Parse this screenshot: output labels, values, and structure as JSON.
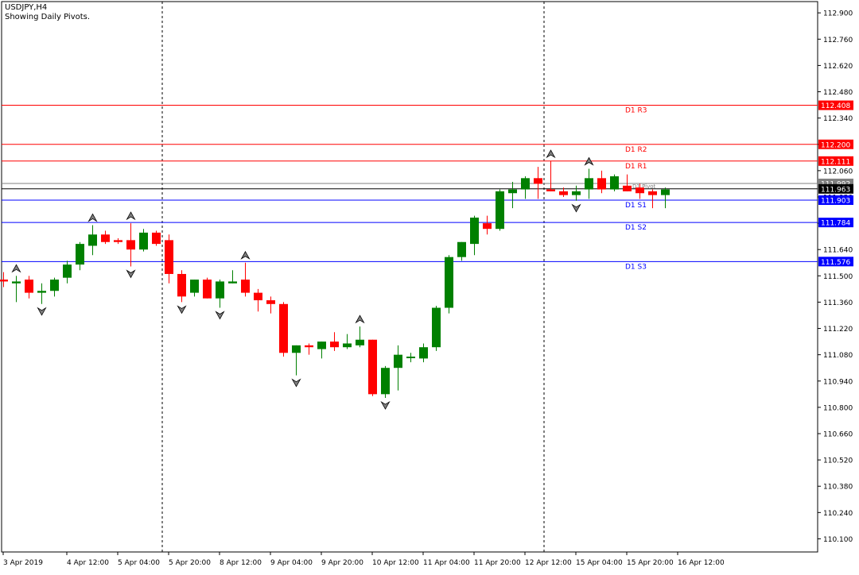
{
  "header": {
    "symbol": "USDJPY,H4",
    "subtitle": "Showing Daily Pivots."
  },
  "colors": {
    "bull": "#008000",
    "bear": "#ff0000",
    "resistance": "#ff0000",
    "support": "#0000ff",
    "pivot": "#808080",
    "price_label_bg": "#000000",
    "pivot_label_bg": "#808080"
  },
  "chart_data": {
    "type": "candlestick",
    "ylim": [
      110.03,
      112.96
    ],
    "y_ticks": [
      "112.900",
      "112.760",
      "112.620",
      "112.480",
      "112.340",
      "112.200",
      "112.060",
      "111.920",
      "111.780",
      "111.640",
      "111.500",
      "111.360",
      "111.220",
      "111.080",
      "110.940",
      "110.800",
      "110.660",
      "110.520",
      "110.380",
      "110.240",
      "110.100"
    ],
    "x_ticks": [
      {
        "label": "3 Apr 2019",
        "index": 0
      },
      {
        "label": "4 Apr 12:00",
        "index": 5
      },
      {
        "label": "5 Apr 04:00",
        "index": 9
      },
      {
        "label": "5 Apr 20:00",
        "index": 13
      },
      {
        "label": "8 Apr 12:00",
        "index": 17
      },
      {
        "label": "9 Apr 04:00",
        "index": 21
      },
      {
        "label": "9 Apr 20:00",
        "index": 25
      },
      {
        "label": "10 Apr 12:00",
        "index": 29
      },
      {
        "label": "11 Apr 04:00",
        "index": 33
      },
      {
        "label": "11 Apr 20:00",
        "index": 37
      },
      {
        "label": "12 Apr 12:00",
        "index": 41
      },
      {
        "label": "15 Apr 04:00",
        "index": 45
      },
      {
        "label": "15 Apr 20:00",
        "index": 49
      },
      {
        "label": "16 Apr 12:00",
        "index": 53
      }
    ],
    "day_separators": [
      13,
      43
    ],
    "candles": [
      {
        "o": 111.48,
        "h": 111.52,
        "l": 111.44,
        "c": 111.47
      },
      {
        "o": 111.46,
        "h": 111.5,
        "l": 111.36,
        "c": 111.47
      },
      {
        "o": 111.48,
        "h": 111.5,
        "l": 111.38,
        "c": 111.41
      },
      {
        "o": 111.41,
        "h": 111.46,
        "l": 111.35,
        "c": 111.42
      },
      {
        "o": 111.42,
        "h": 111.49,
        "l": 111.39,
        "c": 111.48
      },
      {
        "o": 111.49,
        "h": 111.58,
        "l": 111.46,
        "c": 111.56
      },
      {
        "o": 111.56,
        "h": 111.68,
        "l": 111.53,
        "c": 111.67
      },
      {
        "o": 111.66,
        "h": 111.77,
        "l": 111.61,
        "c": 111.72
      },
      {
        "o": 111.72,
        "h": 111.74,
        "l": 111.67,
        "c": 111.68
      },
      {
        "o": 111.69,
        "h": 111.7,
        "l": 111.67,
        "c": 111.68
      },
      {
        "o": 111.69,
        "h": 111.78,
        "l": 111.55,
        "c": 111.64
      },
      {
        "o": 111.64,
        "h": 111.75,
        "l": 111.63,
        "c": 111.73
      },
      {
        "o": 111.73,
        "h": 111.74,
        "l": 111.66,
        "c": 111.67
      },
      {
        "o": 111.69,
        "h": 111.72,
        "l": 111.46,
        "c": 111.51
      },
      {
        "o": 111.51,
        "h": 111.53,
        "l": 111.36,
        "c": 111.39
      },
      {
        "o": 111.41,
        "h": 111.48,
        "l": 111.39,
        "c": 111.48
      },
      {
        "o": 111.48,
        "h": 111.49,
        "l": 111.38,
        "c": 111.38
      },
      {
        "o": 111.38,
        "h": 111.48,
        "l": 111.33,
        "c": 111.47
      },
      {
        "o": 111.46,
        "h": 111.53,
        "l": 111.46,
        "c": 111.47
      },
      {
        "o": 111.48,
        "h": 111.57,
        "l": 111.39,
        "c": 111.41
      },
      {
        "o": 111.41,
        "h": 111.43,
        "l": 111.31,
        "c": 111.37
      },
      {
        "o": 111.37,
        "h": 111.39,
        "l": 111.3,
        "c": 111.35
      },
      {
        "o": 111.35,
        "h": 111.36,
        "l": 111.07,
        "c": 111.09
      },
      {
        "o": 111.09,
        "h": 111.13,
        "l": 110.97,
        "c": 111.13
      },
      {
        "o": 111.13,
        "h": 111.14,
        "l": 111.08,
        "c": 111.12
      },
      {
        "o": 111.11,
        "h": 111.15,
        "l": 111.06,
        "c": 111.15
      },
      {
        "o": 111.15,
        "h": 111.2,
        "l": 111.1,
        "c": 111.12
      },
      {
        "o": 111.12,
        "h": 111.19,
        "l": 111.11,
        "c": 111.14
      },
      {
        "o": 111.13,
        "h": 111.23,
        "l": 111.12,
        "c": 111.16
      },
      {
        "o": 111.16,
        "h": 111.16,
        "l": 110.86,
        "c": 110.87
      },
      {
        "o": 110.87,
        "h": 111.02,
        "l": 110.85,
        "c": 111.01
      },
      {
        "o": 111.01,
        "h": 111.13,
        "l": 110.89,
        "c": 111.08
      },
      {
        "o": 111.07,
        "h": 111.09,
        "l": 111.04,
        "c": 111.07
      },
      {
        "o": 111.06,
        "h": 111.14,
        "l": 111.04,
        "c": 111.12
      },
      {
        "o": 111.12,
        "h": 111.34,
        "l": 111.1,
        "c": 111.33
      },
      {
        "o": 111.33,
        "h": 111.61,
        "l": 111.3,
        "c": 111.6
      },
      {
        "o": 111.6,
        "h": 111.68,
        "l": 111.58,
        "c": 111.68
      },
      {
        "o": 111.67,
        "h": 111.82,
        "l": 111.61,
        "c": 111.81
      },
      {
        "o": 111.78,
        "h": 111.82,
        "l": 111.72,
        "c": 111.75
      },
      {
        "o": 111.75,
        "h": 111.96,
        "l": 111.74,
        "c": 111.95
      },
      {
        "o": 111.94,
        "h": 112.0,
        "l": 111.86,
        "c": 111.96
      },
      {
        "o": 111.96,
        "h": 112.03,
        "l": 111.91,
        "c": 112.02
      },
      {
        "o": 112.02,
        "h": 112.08,
        "l": 111.91,
        "c": 111.99
      },
      {
        "o": 111.96,
        "h": 112.11,
        "l": 111.95,
        "c": 111.95
      },
      {
        "o": 111.95,
        "h": 111.97,
        "l": 111.92,
        "c": 111.93
      },
      {
        "o": 111.93,
        "h": 111.98,
        "l": 111.9,
        "c": 111.95
      },
      {
        "o": 111.96,
        "h": 112.07,
        "l": 111.91,
        "c": 112.02
      },
      {
        "o": 112.02,
        "h": 112.06,
        "l": 111.94,
        "c": 111.96
      },
      {
        "o": 111.96,
        "h": 112.04,
        "l": 111.95,
        "c": 112.03
      },
      {
        "o": 111.98,
        "h": 112.04,
        "l": 111.95,
        "c": 111.95
      },
      {
        "o": 111.97,
        "h": 111.99,
        "l": 111.91,
        "c": 111.94
      },
      {
        "o": 111.95,
        "h": 111.96,
        "l": 111.86,
        "c": 111.93
      },
      {
        "o": 111.93,
        "h": 111.97,
        "l": 111.86,
        "c": 111.96
      }
    ],
    "fractals_up": [
      1,
      7,
      10,
      19,
      28,
      43,
      46
    ],
    "fractals_down": [
      3,
      10,
      14,
      17,
      23,
      30,
      45
    ],
    "pivot_lines": [
      {
        "name": "D1  R3",
        "value": 112.408,
        "label": "112.408",
        "kind": "resistance"
      },
      {
        "name": "D1  R2",
        "value": 112.2,
        "label": "112.200",
        "kind": "resistance"
      },
      {
        "name": "D1  R1",
        "value": 112.111,
        "label": "112.111",
        "kind": "resistance"
      },
      {
        "name": "D1  Pivot",
        "value": 111.992,
        "label": "111.992",
        "kind": "pivot"
      },
      {
        "name": "D1  S1",
        "value": 111.903,
        "label": "111.903",
        "kind": "support"
      },
      {
        "name": "D1  S2",
        "value": 111.784,
        "label": "111.784",
        "kind": "support"
      },
      {
        "name": "D1  S3",
        "value": 111.576,
        "label": "111.576",
        "kind": "support"
      }
    ],
    "current_price": {
      "value": 111.963,
      "label": "111.963"
    }
  }
}
